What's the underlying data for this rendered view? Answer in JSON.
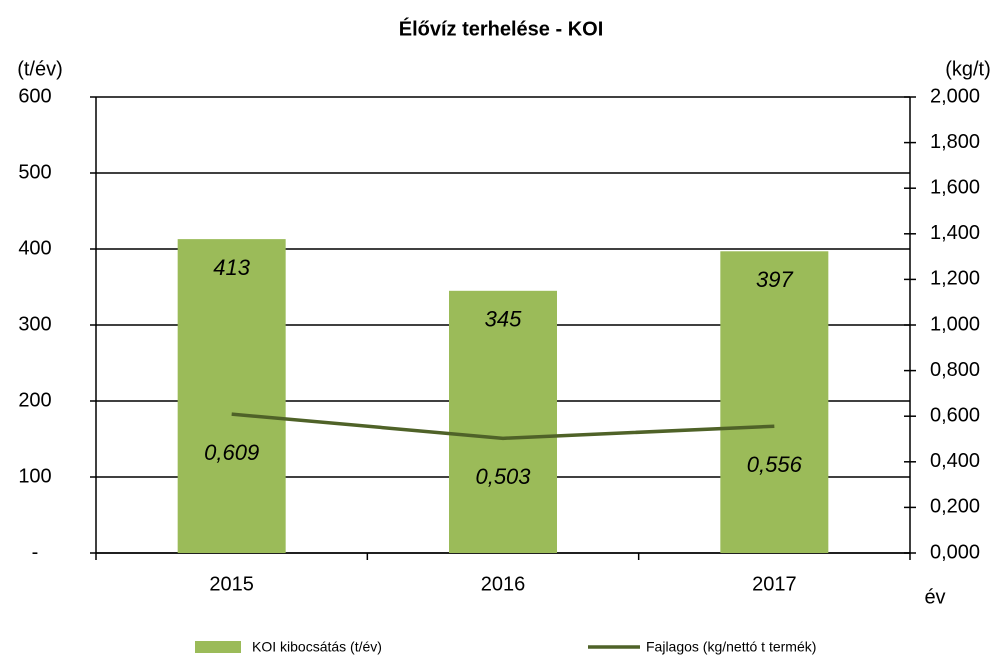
{
  "chart_data": {
    "type": "combo",
    "title": "Élővíz terhelése - KOI",
    "y_label": "(t/év)",
    "y2_label": "(kg/t)",
    "x_label": "év",
    "categories": [
      "2015",
      "2016",
      "2017"
    ],
    "series": [
      {
        "name": "KOI kibocsátás (t/év)",
        "type": "bar",
        "color": "#9bbb59",
        "values": [
          413,
          345,
          397
        ]
      },
      {
        "name": "Fajlagos (kg/nettó t termék)",
        "type": "line",
        "axis": "y2",
        "color": "#4f6228",
        "values": [
          0.609,
          0.503,
          0.556
        ],
        "value_labels": [
          "0,609",
          "0,503",
          "0,556"
        ]
      }
    ],
    "ylim": [
      0,
      600
    ],
    "yticks": [
      {
        "value": 0,
        "label": "-"
      },
      100,
      200,
      300,
      400,
      500,
      600
    ],
    "y2lim": [
      0,
      2
    ],
    "y2ticks": [
      {
        "value": 0,
        "label": "0,000"
      },
      {
        "value": 0.2,
        "label": "0,200"
      },
      {
        "value": 0.4,
        "label": "0,400"
      },
      {
        "value": 0.6,
        "label": "0,600"
      },
      {
        "value": 0.8,
        "label": "0,800"
      },
      {
        "value": 1,
        "label": "1,000"
      },
      {
        "value": 1.2,
        "label": "1,200"
      },
      {
        "value": 1.4,
        "label": "1,400"
      },
      {
        "value": 1.6,
        "label": "1,600"
      },
      {
        "value": 1.8,
        "label": "1,800"
      },
      {
        "value": 2,
        "label": "2,000"
      }
    ],
    "grid": true
  }
}
